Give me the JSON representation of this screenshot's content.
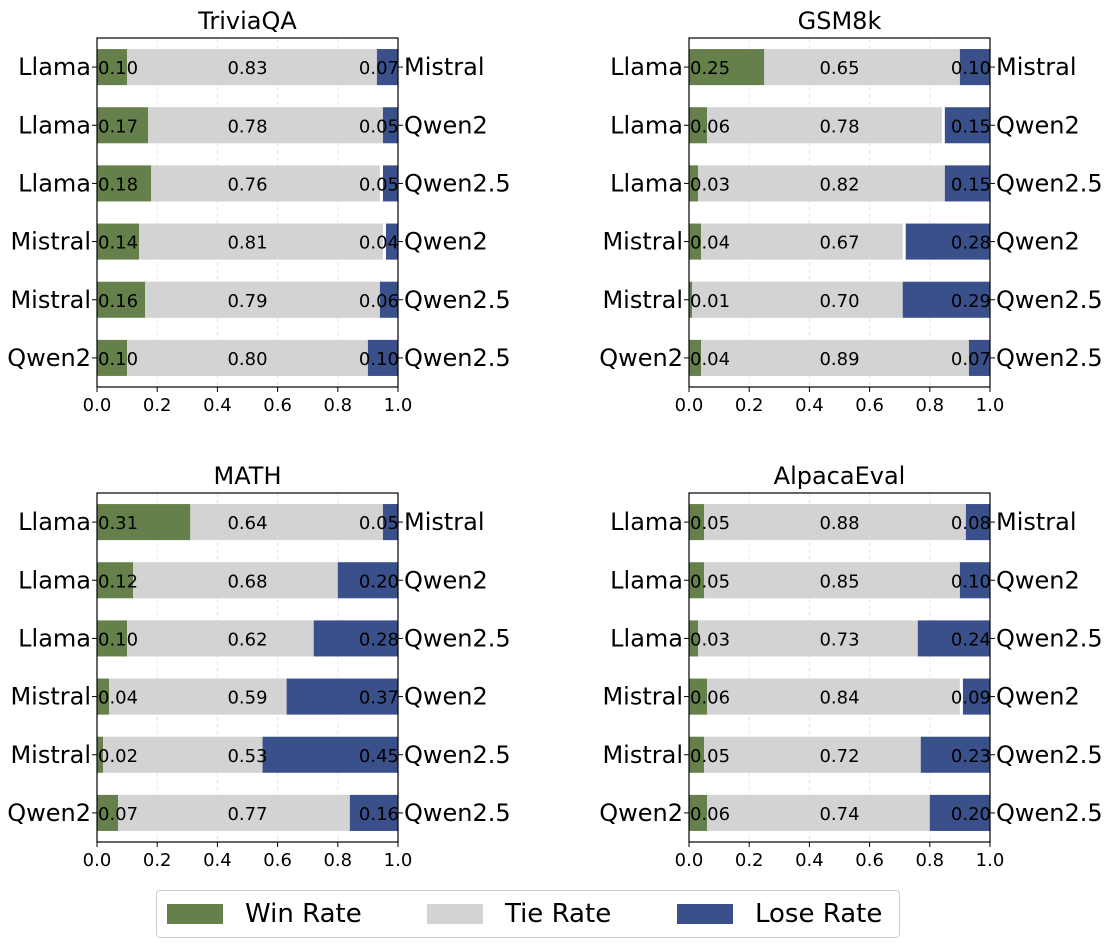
{
  "colors": {
    "win": "#66804b",
    "tie": "#d3d3d3",
    "lose": "#3a508b"
  },
  "legend": [
    {
      "key": "win",
      "label": "Win Rate",
      "color": "#66804b"
    },
    {
      "key": "tie",
      "label": "Tie Rate",
      "color": "#d3d3d3"
    },
    {
      "key": "lose",
      "label": "Lose Rate",
      "color": "#3a508b"
    }
  ],
  "chart_data": [
    {
      "type": "bar",
      "orientation": "horizontal-stacked",
      "title": "TriviaQA",
      "xlim": [
        0,
        1
      ],
      "xticks": [
        "0.0",
        "0.2",
        "0.4",
        "0.6",
        "0.8",
        "1.0"
      ],
      "grid": "vertical dashed",
      "rows": [
        {
          "left": "Llama",
          "right": "Mistral",
          "win": 0.1,
          "tie": 0.83,
          "lose": 0.07,
          "labels": [
            "0.10",
            "0.83",
            "0.07"
          ]
        },
        {
          "left": "Llama",
          "right": "Qwen2",
          "win": 0.17,
          "tie": 0.78,
          "lose": 0.05,
          "labels": [
            "0.17",
            "0.78",
            "0.05"
          ]
        },
        {
          "left": "Llama",
          "right": "Qwen2.5",
          "win": 0.18,
          "tie": 0.76,
          "lose": 0.05,
          "labels": [
            "0.18",
            "0.76",
            "0.05"
          ]
        },
        {
          "left": "Mistral",
          "right": "Qwen2",
          "win": 0.14,
          "tie": 0.81,
          "lose": 0.04,
          "labels": [
            "0.14",
            "0.81",
            "0.04"
          ]
        },
        {
          "left": "Mistral",
          "right": "Qwen2.5",
          "win": 0.16,
          "tie": 0.79,
          "lose": 0.06,
          "labels": [
            "0.16",
            "0.79",
            "0.06"
          ]
        },
        {
          "left": "Qwen2",
          "right": "Qwen2.5",
          "win": 0.1,
          "tie": 0.8,
          "lose": 0.1,
          "labels": [
            "0.10",
            "0.80",
            "0.10"
          ]
        }
      ]
    },
    {
      "type": "bar",
      "orientation": "horizontal-stacked",
      "title": "GSM8k",
      "xlim": [
        0,
        1
      ],
      "xticks": [
        "0.0",
        "0.2",
        "0.4",
        "0.6",
        "0.8",
        "1.0"
      ],
      "grid": "vertical dashed",
      "rows": [
        {
          "left": "Llama",
          "right": "Mistral",
          "win": 0.25,
          "tie": 0.65,
          "lose": 0.1,
          "labels": [
            "0.25",
            "0.65",
            "0.10"
          ]
        },
        {
          "left": "Llama",
          "right": "Qwen2",
          "win": 0.06,
          "tie": 0.78,
          "lose": 0.15,
          "labels": [
            "0.06",
            "0.78",
            "0.15"
          ]
        },
        {
          "left": "Llama",
          "right": "Qwen2.5",
          "win": 0.03,
          "tie": 0.82,
          "lose": 0.15,
          "labels": [
            "0.03",
            "0.82",
            "0.15"
          ]
        },
        {
          "left": "Mistral",
          "right": "Qwen2",
          "win": 0.04,
          "tie": 0.67,
          "lose": 0.28,
          "labels": [
            "0.04",
            "0.67",
            "0.28"
          ]
        },
        {
          "left": "Mistral",
          "right": "Qwen2.5",
          "win": 0.01,
          "tie": 0.7,
          "lose": 0.29,
          "labels": [
            "0.01",
            "0.70",
            "0.29"
          ]
        },
        {
          "left": "Qwen2",
          "right": "Qwen2.5",
          "win": 0.04,
          "tie": 0.89,
          "lose": 0.07,
          "labels": [
            "0.04",
            "0.89",
            "0.07"
          ]
        }
      ]
    },
    {
      "type": "bar",
      "orientation": "horizontal-stacked",
      "title": "MATH",
      "xlim": [
        0,
        1
      ],
      "xticks": [
        "0.0",
        "0.2",
        "0.4",
        "0.6",
        "0.8",
        "1.0"
      ],
      "grid": "vertical dashed",
      "rows": [
        {
          "left": "Llama",
          "right": "Mistral",
          "win": 0.31,
          "tie": 0.64,
          "lose": 0.05,
          "labels": [
            "0.31",
            "0.64",
            "0.05"
          ]
        },
        {
          "left": "Llama",
          "right": "Qwen2",
          "win": 0.12,
          "tie": 0.68,
          "lose": 0.2,
          "labels": [
            "0.12",
            "0.68",
            "0.20"
          ]
        },
        {
          "left": "Llama",
          "right": "Qwen2.5",
          "win": 0.1,
          "tie": 0.62,
          "lose": 0.28,
          "labels": [
            "0.10",
            "0.62",
            "0.28"
          ]
        },
        {
          "left": "Mistral",
          "right": "Qwen2",
          "win": 0.04,
          "tie": 0.59,
          "lose": 0.37,
          "labels": [
            "0.04",
            "0.59",
            "0.37"
          ]
        },
        {
          "left": "Mistral",
          "right": "Qwen2.5",
          "win": 0.02,
          "tie": 0.53,
          "lose": 0.45,
          "labels": [
            "0.02",
            "0.53",
            "0.45"
          ]
        },
        {
          "left": "Qwen2",
          "right": "Qwen2.5",
          "win": 0.07,
          "tie": 0.77,
          "lose": 0.16,
          "labels": [
            "0.07",
            "0.77",
            "0.16"
          ]
        }
      ]
    },
    {
      "type": "bar",
      "orientation": "horizontal-stacked",
      "title": "AlpacaEval",
      "xlim": [
        0,
        1
      ],
      "xticks": [
        "0.0",
        "0.2",
        "0.4",
        "0.6",
        "0.8",
        "1.0"
      ],
      "grid": "vertical dashed",
      "rows": [
        {
          "left": "Llama",
          "right": "Mistral",
          "win": 0.05,
          "tie": 0.88,
          "lose": 0.08,
          "labels": [
            "0.05",
            "0.88",
            "0.08"
          ]
        },
        {
          "left": "Llama",
          "right": "Qwen2",
          "win": 0.05,
          "tie": 0.85,
          "lose": 0.1,
          "labels": [
            "0.05",
            "0.85",
            "0.10"
          ]
        },
        {
          "left": "Llama",
          "right": "Qwen2.5",
          "win": 0.03,
          "tie": 0.73,
          "lose": 0.24,
          "labels": [
            "0.03",
            "0.73",
            "0.24"
          ]
        },
        {
          "left": "Mistral",
          "right": "Qwen2",
          "win": 0.06,
          "tie": 0.84,
          "lose": 0.09,
          "labels": [
            "0.06",
            "0.84",
            "0.09"
          ]
        },
        {
          "left": "Mistral",
          "right": "Qwen2.5",
          "win": 0.05,
          "tie": 0.72,
          "lose": 0.23,
          "labels": [
            "0.05",
            "0.72",
            "0.23"
          ]
        },
        {
          "left": "Qwen2",
          "right": "Qwen2.5",
          "win": 0.06,
          "tie": 0.74,
          "lose": 0.2,
          "labels": [
            "0.06",
            "0.74",
            "0.20"
          ]
        }
      ]
    }
  ]
}
